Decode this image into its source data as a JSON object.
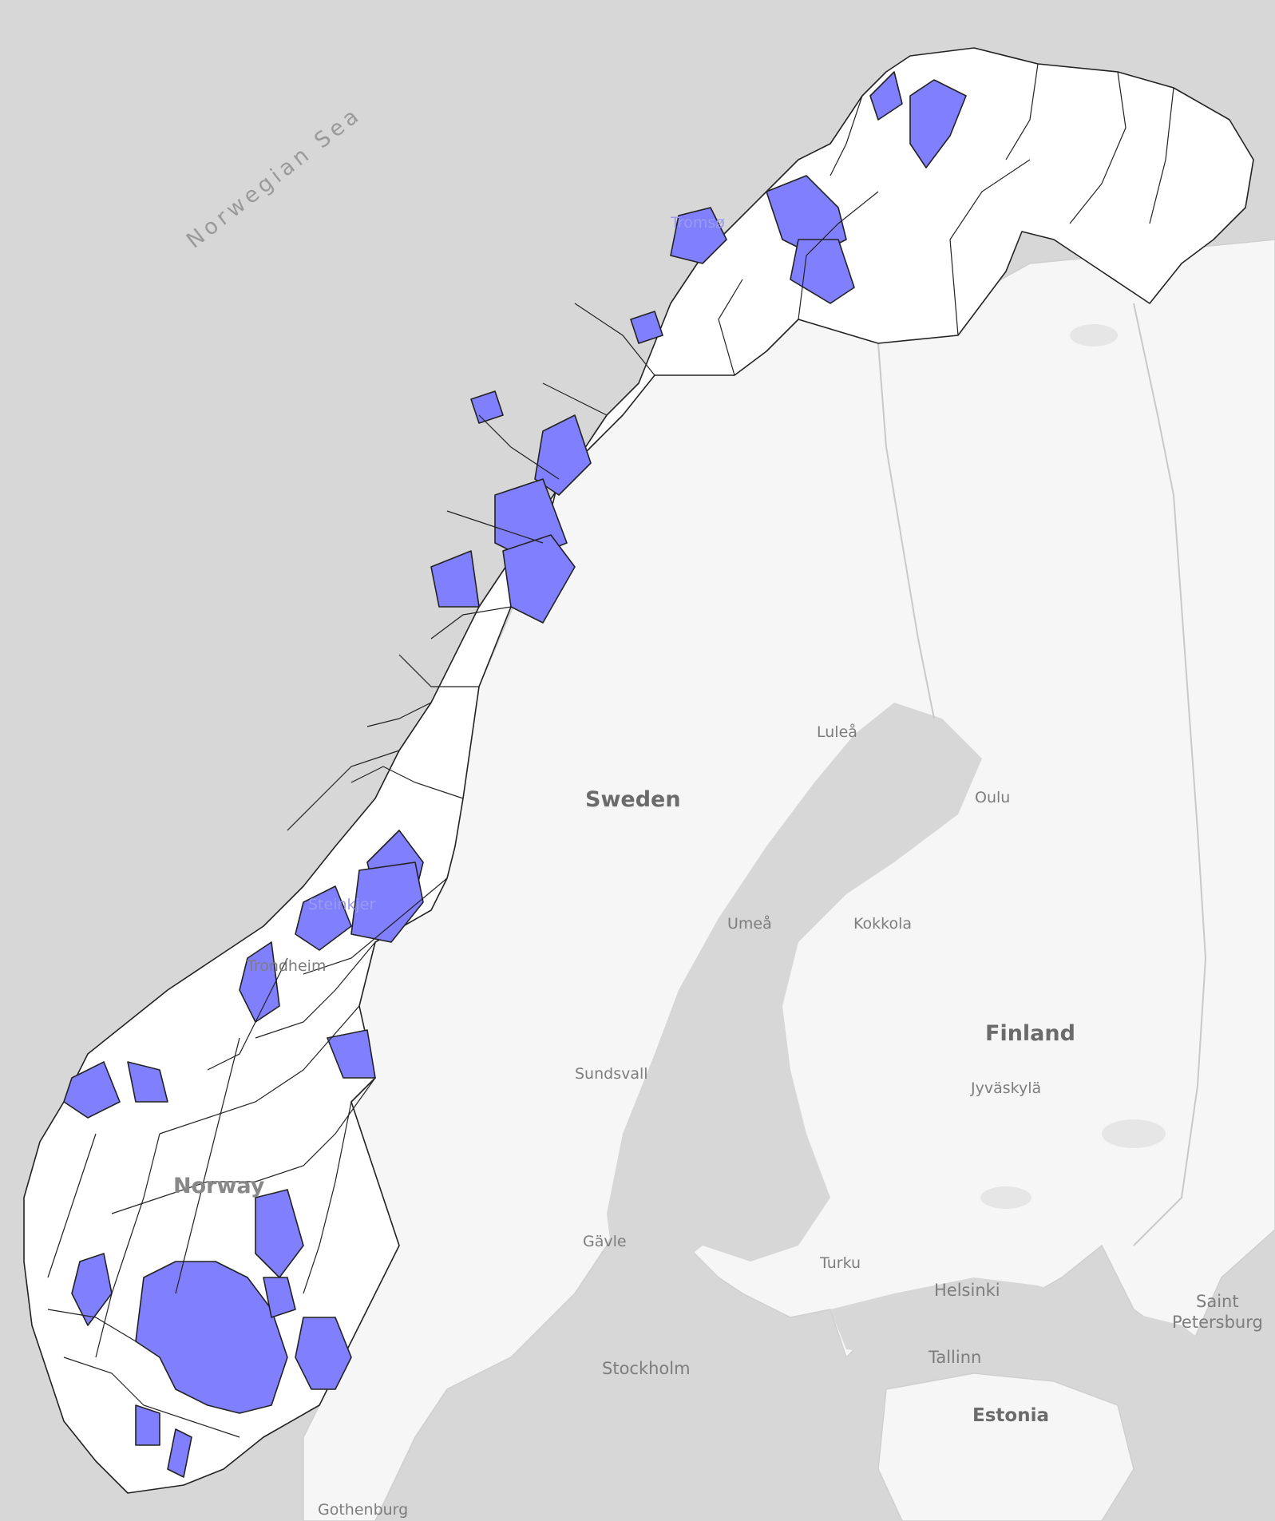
{
  "labels": {
    "sea": "Norwegian Sea",
    "countries": {
      "sweden": "Sweden",
      "finland": "Finland",
      "norway": "Norway",
      "estonia": "Estonia"
    },
    "cities": {
      "tromso": "Tromsø",
      "lulea": "Luleå",
      "oulu": "Oulu",
      "umea": "Umeå",
      "kokkola": "Kokkola",
      "steinkjer": "Steinkjer",
      "trondheim": "Trondheim",
      "sundsvall": "Sundsvall",
      "jyvaskyla": "Jyväskylä",
      "gavle": "Gävle",
      "turku": "Turku",
      "helsinki": "Helsinki",
      "saint_petersburg_1": "Saint",
      "saint_petersburg_2": "Petersburg",
      "tallinn": "Tallinn",
      "stockholm": "Stockholm",
      "gothenburg": "Gothenburg"
    }
  },
  "colors": {
    "water": "#d7d7d7",
    "neighbor_land": "#f6f6f6",
    "municipality_default": "#ffffff",
    "municipality_highlight": "#8080ff",
    "municipality_border": "#222222"
  }
}
